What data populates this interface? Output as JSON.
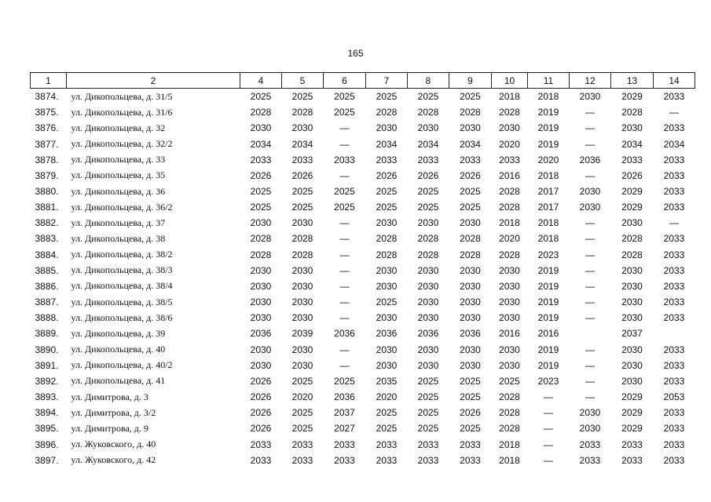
{
  "page_number": "165",
  "table": {
    "header": [
      "1",
      "2",
      "4",
      "5",
      "6",
      "7",
      "8",
      "9",
      "10",
      "11",
      "12",
      "13",
      "14"
    ],
    "rows": [
      [
        "3874.",
        "ул. Дикопольцева, д. 31/5",
        "2025",
        "2025",
        "2025",
        "2025",
        "2025",
        "2025",
        "2018",
        "2018",
        "2030",
        "2029",
        "2033"
      ],
      [
        "3875.",
        "ул. Дикопольцева, д. 31/6",
        "2028",
        "2028",
        "2025",
        "2028",
        "2028",
        "2028",
        "2028",
        "2019",
        "—",
        "2028",
        "—"
      ],
      [
        "3876.",
        "ул. Дикопольцева, д. 32",
        "2030",
        "2030",
        "—",
        "2030",
        "2030",
        "2030",
        "2030",
        "2019",
        "—",
        "2030",
        "2033"
      ],
      [
        "3877.",
        "ул. Дикопольцева, д. 32/2",
        "2034",
        "2034",
        "—",
        "2034",
        "2034",
        "2034",
        "2020",
        "2019",
        "—",
        "2034",
        "2034"
      ],
      [
        "3878.",
        "ул. Дикопольцева, д. 33",
        "2033",
        "2033",
        "2033",
        "2033",
        "2033",
        "2033",
        "2033",
        "2020",
        "2036",
        "2033",
        "2033"
      ],
      [
        "3879.",
        "ул. Дикопольцева, д. 35",
        "2026",
        "2026",
        "—",
        "2026",
        "2026",
        "2026",
        "2016",
        "2018",
        "—",
        "2026",
        "2033"
      ],
      [
        "3880.",
        "ул. Дикопольцева, д. 36",
        "2025",
        "2025",
        "2025",
        "2025",
        "2025",
        "2025",
        "2028",
        "2017",
        "2030",
        "2029",
        "2033"
      ],
      [
        "3881.",
        "ул. Дикопольцева, д. 36/2",
        "2025",
        "2025",
        "2025",
        "2025",
        "2025",
        "2025",
        "2028",
        "2017",
        "2030",
        "2029",
        "2033"
      ],
      [
        "3882.",
        "ул. Дикопольцева, д. 37",
        "2030",
        "2030",
        "—",
        "2030",
        "2030",
        "2030",
        "2018",
        "2018",
        "—",
        "2030",
        "—"
      ],
      [
        "3883.",
        "ул. Дикопольцева, д. 38",
        "2028",
        "2028",
        "—",
        "2028",
        "2028",
        "2028",
        "2020",
        "2018",
        "—",
        "2028",
        "2033"
      ],
      [
        "3884.",
        "ул. Дикопольцева, д. 38/2",
        "2028",
        "2028",
        "—",
        "2028",
        "2028",
        "2028",
        "2028",
        "2023",
        "—",
        "2028",
        "2033"
      ],
      [
        "3885.",
        "ул. Дикопольцева, д. 38/3",
        "2030",
        "2030",
        "—",
        "2030",
        "2030",
        "2030",
        "2030",
        "2019",
        "—",
        "2030",
        "2033"
      ],
      [
        "3886.",
        "ул. Дикопольцева, д. 38/4",
        "2030",
        "2030",
        "—",
        "2030",
        "2030",
        "2030",
        "2030",
        "2019",
        "—",
        "2030",
        "2033"
      ],
      [
        "3887.",
        "ул. Дикопольцева, д. 38/5",
        "2030",
        "2030",
        "—",
        "2025",
        "2030",
        "2030",
        "2030",
        "2019",
        "—",
        "2030",
        "2033"
      ],
      [
        "3888.",
        "ул. Дикопольцева, д. 38/6",
        "2030",
        "2030",
        "—",
        "2030",
        "2030",
        "2030",
        "2030",
        "2019",
        "—",
        "2030",
        "2033"
      ],
      [
        "3889.",
        "ул. Дикопольцева, д. 39",
        "2036",
        "2039",
        "2036",
        "2036",
        "2036",
        "2036",
        "2016",
        "2016",
        null,
        "2037",
        null
      ],
      [
        "3890.",
        "ул. Дикопольцева, д. 40",
        "2030",
        "2030",
        "—",
        "2030",
        "2030",
        "2030",
        "2030",
        "2019",
        "—",
        "2030",
        "2033"
      ],
      [
        "3891.",
        "ул. Дикопольцева, д. 40/2",
        "2030",
        "2030",
        "—",
        "2030",
        "2030",
        "2030",
        "2030",
        "2019",
        "—",
        "2030",
        "2033"
      ],
      [
        "3892.",
        "ул. Дикопольцева, д. 41",
        "2026",
        "2025",
        "2025",
        "2035",
        "2025",
        "2025",
        "2025",
        "2023",
        "—",
        "2030",
        "2033"
      ],
      [
        "3893.",
        "ул. Димитрова, д. 3",
        "2026",
        "2020",
        "2036",
        "2020",
        "2025",
        "2025",
        "2028",
        "—",
        "—",
        "2029",
        "2053"
      ],
      [
        "3894.",
        "ул. Димитрова, д. 3/2",
        "2026",
        "2025",
        "2037",
        "2025",
        "2025",
        "2026",
        "2028",
        "—",
        "2030",
        "2029",
        "2033"
      ],
      [
        "3895.",
        "ул. Димитрова, д. 9",
        "2026",
        "2025",
        "2027",
        "2025",
        "2025",
        "2025",
        "2028",
        "—",
        "2030",
        "2029",
        "2033"
      ],
      [
        "3896.",
        "ул. Жуковского, д. 40",
        "2033",
        "2033",
        "2033",
        "2033",
        "2033",
        "2033",
        "2018",
        "—",
        "2033",
        "2033",
        "2033"
      ],
      [
        "3897.",
        "ул. Жуковского, д. 42",
        "2033",
        "2033",
        "2033",
        "2033",
        "2033",
        "2033",
        "2018",
        "—",
        "2033",
        "2033",
        "2033"
      ]
    ]
  }
}
